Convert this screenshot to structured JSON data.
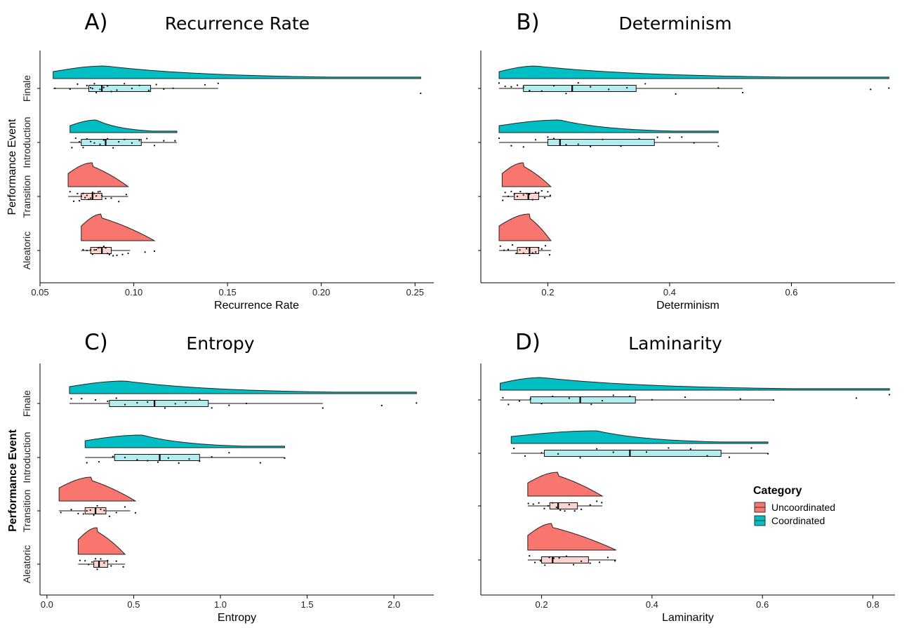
{
  "colors": {
    "uncoordinated": "#F8766D",
    "uncoordinated_box": "#FBD3CF",
    "coordinated": "#00BFC4",
    "coordinated_box": "#B3ECEE"
  },
  "y_axis_label": "Performance Event",
  "legend": {
    "title": "Category",
    "items": [
      {
        "label": "Uncoordinated",
        "color": "#F8766D"
      },
      {
        "label": "Coordinated",
        "color": "#00BFC4"
      }
    ]
  },
  "chart_data": [
    {
      "type": "raincloud",
      "letter": "A)",
      "title": "Recurrence Rate",
      "xlabel": "Recurrence Rate",
      "xlim": [
        0.05,
        0.26
      ],
      "xticks": [
        0.05,
        0.1,
        0.15,
        0.2,
        0.25
      ],
      "xtick_labels": [
        "0.05",
        "0.10",
        "0.15",
        "0.20",
        "0.25"
      ],
      "show_category_labels": true,
      "groups": [
        {
          "label": "Finale",
          "category": "Coordinated",
          "min": 0.057,
          "q1": 0.076,
          "median": 0.083,
          "q3": 0.109,
          "max": 0.145,
          "outliers": [
            0.253
          ],
          "density_peak": 0.085,
          "points": [
            0.058,
            0.066,
            0.07,
            0.075,
            0.077,
            0.078,
            0.079,
            0.08,
            0.082,
            0.084,
            0.086,
            0.088,
            0.091,
            0.095,
            0.099,
            0.103,
            0.108,
            0.112,
            0.116,
            0.121,
            0.138,
            0.145,
            0.253
          ]
        },
        {
          "label": "Introduction",
          "category": "Coordinated",
          "min": 0.066,
          "q1": 0.072,
          "median": 0.085,
          "q3": 0.104,
          "max": 0.123,
          "outliers": [],
          "density_peak": 0.08,
          "points": [
            0.067,
            0.069,
            0.071,
            0.073,
            0.075,
            0.077,
            0.079,
            0.082,
            0.084,
            0.086,
            0.089,
            0.092,
            0.095,
            0.099,
            0.103,
            0.107,
            0.111,
            0.116,
            0.122
          ]
        },
        {
          "label": "Transition",
          "category": "Uncoordinated",
          "min": 0.065,
          "q1": 0.072,
          "median": 0.078,
          "q3": 0.083,
          "max": 0.097,
          "outliers": [],
          "density_peak": 0.078,
          "points": [
            0.066,
            0.068,
            0.07,
            0.071,
            0.072,
            0.073,
            0.074,
            0.075,
            0.076,
            0.077,
            0.078,
            0.079,
            0.08,
            0.081,
            0.082,
            0.083,
            0.085,
            0.088,
            0.092,
            0.096
          ]
        },
        {
          "label": "Aleatoric",
          "category": "Uncoordinated",
          "min": 0.072,
          "q1": 0.077,
          "median": 0.083,
          "q3": 0.088,
          "max": 0.098,
          "outliers": [
            0.106,
            0.111
          ],
          "density_peak": 0.083,
          "points": [
            0.073,
            0.075,
            0.077,
            0.078,
            0.079,
            0.08,
            0.081,
            0.082,
            0.083,
            0.084,
            0.085,
            0.086,
            0.087,
            0.089,
            0.091,
            0.094,
            0.097,
            0.106,
            0.111
          ]
        }
      ]
    },
    {
      "type": "raincloud",
      "letter": "B)",
      "title": "Determinism",
      "xlabel": "Determinism",
      "xlim": [
        0.09,
        0.77
      ],
      "xticks": [
        0.2,
        0.4,
        0.6
      ],
      "xtick_labels": [
        "0.2",
        "0.4",
        "0.6"
      ],
      "show_category_labels": false,
      "groups": [
        {
          "label": "Finale",
          "category": "Coordinated",
          "min": 0.12,
          "q1": 0.16,
          "median": 0.24,
          "q3": 0.345,
          "max": 0.52,
          "outliers": [
            0.73,
            0.76
          ],
          "density_peak": 0.18,
          "points": [
            0.12,
            0.13,
            0.14,
            0.15,
            0.16,
            0.17,
            0.19,
            0.21,
            0.23,
            0.25,
            0.27,
            0.3,
            0.33,
            0.36,
            0.41,
            0.48,
            0.52,
            0.73,
            0.76
          ]
        },
        {
          "label": "Introduction",
          "category": "Coordinated",
          "min": 0.12,
          "q1": 0.2,
          "median": 0.22,
          "q3": 0.375,
          "max": 0.48,
          "outliers": [],
          "density_peak": 0.22,
          "points": [
            0.12,
            0.14,
            0.16,
            0.18,
            0.2,
            0.21,
            0.22,
            0.23,
            0.25,
            0.27,
            0.29,
            0.32,
            0.35,
            0.38,
            0.4,
            0.42,
            0.44,
            0.48
          ]
        },
        {
          "label": "Transition",
          "category": "Uncoordinated",
          "min": 0.125,
          "q1": 0.145,
          "median": 0.168,
          "q3": 0.185,
          "max": 0.205,
          "outliers": [],
          "density_peak": 0.16,
          "points": [
            0.126,
            0.13,
            0.135,
            0.14,
            0.145,
            0.15,
            0.155,
            0.16,
            0.165,
            0.17,
            0.175,
            0.18,
            0.185,
            0.19,
            0.195,
            0.2,
            0.204
          ]
        },
        {
          "label": "Aleatoric",
          "category": "Uncoordinated",
          "min": 0.12,
          "q1": 0.15,
          "median": 0.17,
          "q3": 0.185,
          "max": 0.205,
          "outliers": [],
          "density_peak": 0.17,
          "points": [
            0.122,
            0.128,
            0.135,
            0.142,
            0.148,
            0.154,
            0.16,
            0.165,
            0.17,
            0.175,
            0.18,
            0.185,
            0.19,
            0.196,
            0.203
          ]
        }
      ]
    },
    {
      "type": "raincloud",
      "letter": "C)",
      "title": "Entropy",
      "xlabel": "Entropy",
      "xlim": [
        -0.04,
        2.23
      ],
      "xticks": [
        0.0,
        0.5,
        1.0,
        1.5,
        2.0
      ],
      "xtick_labels": [
        "0.0",
        "0.5",
        "1.0",
        "1.5",
        "2.0"
      ],
      "show_category_labels": true,
      "groups": [
        {
          "label": "Finale",
          "category": "Coordinated",
          "min": 0.13,
          "q1": 0.36,
          "median": 0.62,
          "q3": 0.93,
          "max": 1.59,
          "outliers": [
            1.93,
            2.13
          ],
          "density_peak": 0.45,
          "points": [
            0.14,
            0.2,
            0.28,
            0.35,
            0.4,
            0.45,
            0.52,
            0.58,
            0.62,
            0.68,
            0.74,
            0.8,
            0.88,
            0.95,
            1.05,
            1.15,
            1.59,
            1.93,
            2.13
          ]
        },
        {
          "label": "Introduction",
          "category": "Coordinated",
          "min": 0.22,
          "q1": 0.39,
          "median": 0.65,
          "q3": 0.88,
          "max": 1.37,
          "outliers": [],
          "density_peak": 0.55,
          "points": [
            0.23,
            0.3,
            0.38,
            0.45,
            0.52,
            0.58,
            0.64,
            0.7,
            0.76,
            0.82,
            0.88,
            0.95,
            1.05,
            1.23,
            1.37
          ]
        },
        {
          "label": "Transition",
          "category": "Uncoordinated",
          "min": 0.07,
          "q1": 0.22,
          "median": 0.28,
          "q3": 0.34,
          "max": 0.48,
          "outliers": [
            0.51
          ],
          "density_peak": 0.26,
          "points": [
            0.08,
            0.14,
            0.18,
            0.21,
            0.23,
            0.25,
            0.27,
            0.28,
            0.29,
            0.31,
            0.33,
            0.36,
            0.4,
            0.45,
            0.51
          ]
        },
        {
          "label": "Aleatoric",
          "category": "Uncoordinated",
          "min": 0.18,
          "q1": 0.27,
          "median": 0.3,
          "q3": 0.35,
          "max": 0.45,
          "outliers": [],
          "density_peak": 0.29,
          "points": [
            0.19,
            0.22,
            0.24,
            0.26,
            0.28,
            0.29,
            0.3,
            0.31,
            0.33,
            0.35,
            0.37,
            0.4,
            0.44
          ]
        }
      ]
    },
    {
      "type": "raincloud",
      "letter": "D)",
      "title": "Laminarity",
      "xlabel": "Laminarity",
      "xlim": [
        0.09,
        0.84
      ],
      "xticks": [
        0.2,
        0.4,
        0.6,
        0.8
      ],
      "xtick_labels": [
        "0.2",
        "0.4",
        "0.6",
        "0.8"
      ],
      "show_category_labels": false,
      "groups": [
        {
          "label": "Finale",
          "category": "Coordinated",
          "min": 0.125,
          "q1": 0.18,
          "median": 0.27,
          "q3": 0.37,
          "max": 0.62,
          "outliers": [
            0.77,
            0.83
          ],
          "density_peak": 0.2,
          "points": [
            0.13,
            0.14,
            0.16,
            0.18,
            0.2,
            0.22,
            0.25,
            0.27,
            0.29,
            0.31,
            0.33,
            0.36,
            0.4,
            0.46,
            0.56,
            0.62,
            0.77,
            0.83
          ]
        },
        {
          "label": "Introduction",
          "category": "Coordinated",
          "min": 0.145,
          "q1": 0.205,
          "median": 0.36,
          "q3": 0.525,
          "max": 0.61,
          "outliers": [],
          "density_peak": 0.3,
          "points": [
            0.15,
            0.17,
            0.2,
            0.23,
            0.27,
            0.3,
            0.33,
            0.36,
            0.39,
            0.43,
            0.47,
            0.5,
            0.54,
            0.58,
            0.61
          ]
        },
        {
          "label": "Transition",
          "category": "Uncoordinated",
          "min": 0.175,
          "q1": 0.215,
          "median": 0.23,
          "q3": 0.265,
          "max": 0.31,
          "outliers": [],
          "density_peak": 0.23,
          "points": [
            0.176,
            0.185,
            0.195,
            0.205,
            0.212,
            0.22,
            0.227,
            0.234,
            0.242,
            0.25,
            0.26,
            0.272,
            0.288,
            0.3,
            0.309
          ]
        },
        {
          "label": "Aleatoric",
          "category": "Uncoordinated",
          "min": 0.175,
          "q1": 0.2,
          "median": 0.22,
          "q3": 0.285,
          "max": 0.335,
          "outliers": [],
          "density_peak": 0.22,
          "points": [
            0.178,
            0.188,
            0.198,
            0.206,
            0.214,
            0.222,
            0.232,
            0.245,
            0.258,
            0.272,
            0.288,
            0.305,
            0.32,
            0.333
          ]
        }
      ]
    }
  ]
}
